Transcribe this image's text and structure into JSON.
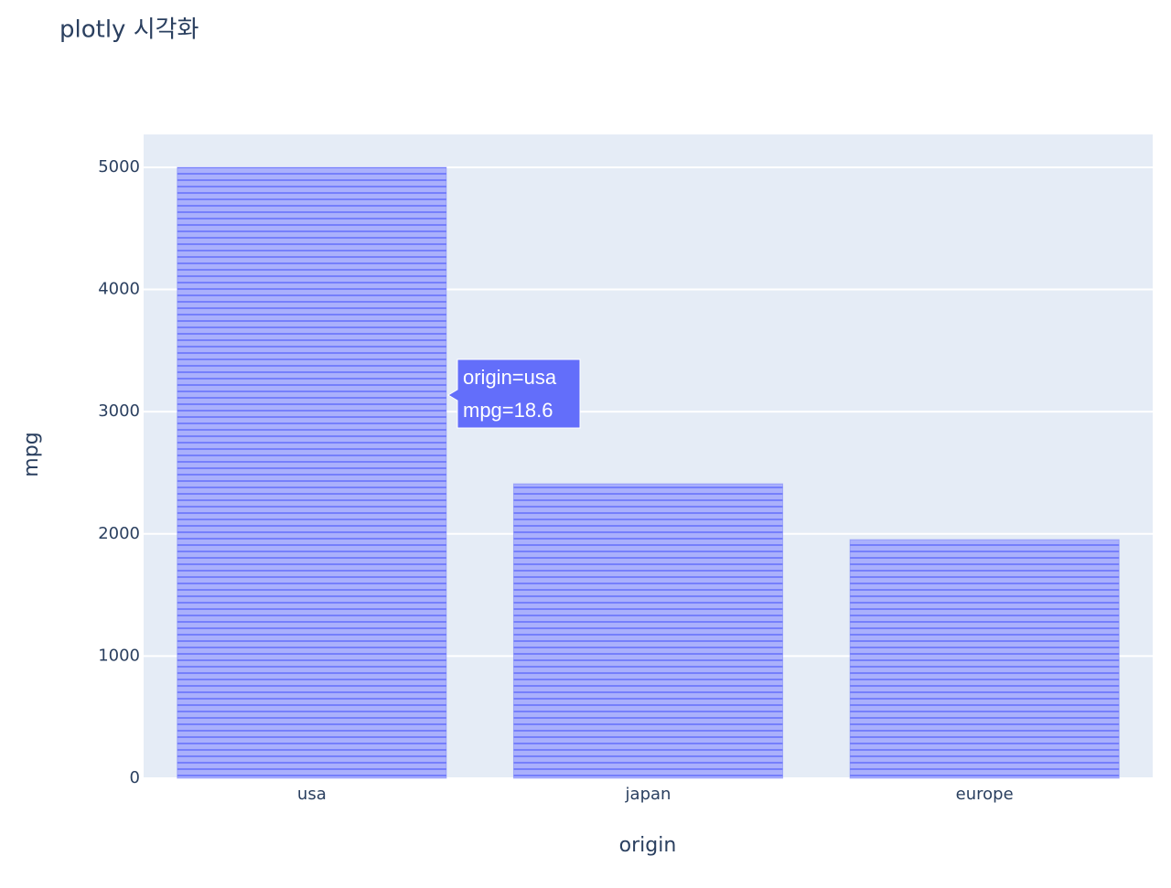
{
  "chart_data": {
    "type": "bar",
    "title": "plotly 시각화",
    "x_label": "origin",
    "y_label": "mpg",
    "categories": [
      "usa",
      "japan",
      "europe"
    ],
    "values": [
      5000,
      2410,
      1953
    ],
    "color": "#636efa",
    "ylim": [
      0,
      5269
    ],
    "yticks": [
      0,
      1000,
      2000,
      3000,
      4000,
      5000
    ],
    "grid": true,
    "tooltip": [
      "origin=usa",
      "mpg=18.6"
    ]
  }
}
